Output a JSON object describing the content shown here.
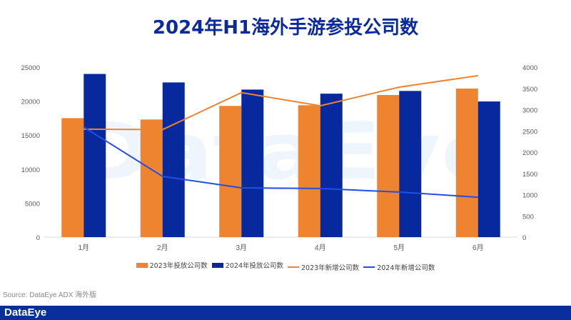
{
  "chart_data": {
    "type": "bar",
    "title": "2024年H1海外手游参投公司数",
    "categories": [
      "1月",
      "2月",
      "3月",
      "4月",
      "5月",
      "6月"
    ],
    "series": [
      {
        "name": "2023年投放公司数",
        "type": "bar",
        "axis": "left",
        "color": "#ee8430",
        "values": [
          17500,
          17300,
          19300,
          19400,
          20900,
          21850
        ]
      },
      {
        "name": "2024年投放公司数",
        "type": "bar",
        "axis": "left",
        "color": "#08299e",
        "values": [
          24000,
          22750,
          21700,
          21100,
          21500,
          19950
        ]
      },
      {
        "name": "2023年新增公司数",
        "type": "line",
        "axis": "right",
        "color": "#ee8430",
        "values": [
          2540,
          2530,
          3400,
          3090,
          3530,
          3800
        ]
      },
      {
        "name": "2024年新增公司数",
        "type": "line",
        "axis": "right",
        "color": "#1f4fe6",
        "values": [
          2590,
          1430,
          1160,
          1145,
          1060,
          940
        ]
      }
    ],
    "yleft": {
      "ylim": [
        0,
        25000
      ],
      "ticks": [
        "0",
        "5000",
        "10000",
        "15000",
        "20000",
        "25000"
      ]
    },
    "yright": {
      "ylim": [
        0,
        4000
      ],
      "ticks": [
        "0",
        "500",
        "1000",
        "1500",
        "2000",
        "2500",
        "3000",
        "3500",
        "4000"
      ]
    },
    "grid": false,
    "legend_position": "bottom"
  },
  "source": "Source: DataEye ADX 海外版",
  "brand": "DataEye",
  "watermark": "DataEye"
}
